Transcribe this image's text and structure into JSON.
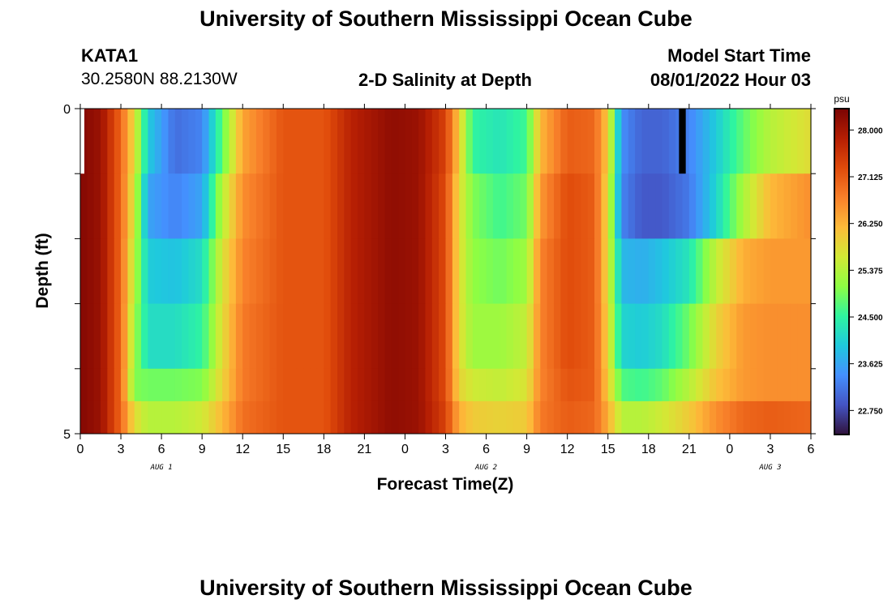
{
  "header": {
    "title": "University of Southern Mississippi Ocean Cube",
    "station_id": "KATA1",
    "coordinates": "30.2580N  88.2130W",
    "plot_title": "2-D Salinity at Depth",
    "model_start_label": "Model Start Time",
    "model_start_value": "08/01/2022 Hour 03"
  },
  "footer": {
    "title": "University of Southern Mississippi Ocean Cube"
  },
  "chart_data": {
    "type": "heatmap",
    "title": "2-D Salinity at Depth",
    "xlabel": "Forecast Time(Z)",
    "ylabel": "Depth (ft)",
    "x_tick_labels": [
      "0",
      "3",
      "6",
      "9",
      "12",
      "15",
      "18",
      "21",
      "0",
      "3",
      "6",
      "9",
      "12",
      "15",
      "18",
      "21",
      "0",
      "3",
      "6"
    ],
    "date_labels": [
      {
        "text": "AUG 1",
        "at_hour": 6
      },
      {
        "text": "AUG 2",
        "at_hour": 30
      },
      {
        "text": "AUG 3",
        "at_hour": 51
      }
    ],
    "x_range_hours": [
      0,
      54
    ],
    "y_range_ft": [
      0,
      5
    ],
    "y_tick_labels": [
      "0",
      "5"
    ],
    "depth_layers_ft": [
      0.5,
      1.5,
      2.5,
      3.5,
      4.5
    ],
    "colorbar": {
      "units": "psu",
      "min": 22.3,
      "max": 28.4,
      "tick_labels": [
        "28.000",
        "27.125",
        "26.250",
        "25.375",
        "24.500",
        "23.625",
        "22.750"
      ],
      "colors": [
        "#30123b",
        "#4454c4",
        "#4490fe",
        "#1fc9dd",
        "#2ff59f",
        "#8efe43",
        "#d2e935",
        "#fdbb39",
        "#f8802a",
        "#e04b0b",
        "#b51e03",
        "#7a0403"
      ]
    },
    "salinity_keypoints": {
      "hours": [
        0,
        1.5,
        3,
        4,
        5,
        7,
        9,
        10.5,
        12,
        15,
        18,
        20,
        23,
        25,
        27,
        28,
        29,
        31,
        33,
        34,
        36,
        38,
        39,
        40,
        41.5,
        43,
        45,
        47,
        49,
        51,
        54
      ],
      "layers": [
        {
          "depth_ft": 0.5,
          "psu": [
            28.3,
            28.1,
            27.0,
            25.8,
            24.0,
            23.1,
            23.3,
            24.8,
            26.4,
            27.2,
            27.2,
            27.8,
            28.2,
            28.1,
            27.4,
            26.0,
            24.5,
            24.3,
            24.6,
            26.2,
            27.1,
            27.0,
            26.0,
            23.4,
            23.0,
            23.0,
            23.3,
            24.0,
            24.8,
            25.4,
            25.8
          ]
        },
        {
          "depth_ft": 1.5,
          "psu": [
            28.3,
            28.1,
            27.0,
            25.6,
            23.6,
            23.3,
            23.6,
            25.4,
            26.6,
            27.2,
            27.2,
            27.8,
            28.2,
            28.1,
            27.3,
            25.8,
            25.0,
            24.6,
            24.9,
            26.5,
            27.3,
            27.1,
            25.8,
            23.3,
            22.9,
            22.9,
            23.2,
            24.1,
            25.3,
            26.2,
            26.6
          ]
        },
        {
          "depth_ft": 2.5,
          "psu": [
            28.3,
            28.1,
            27.0,
            25.4,
            24.0,
            23.9,
            24.2,
            25.7,
            26.7,
            27.2,
            27.2,
            27.8,
            28.2,
            28.1,
            27.3,
            25.8,
            25.1,
            24.9,
            25.2,
            26.7,
            27.3,
            27.1,
            25.8,
            23.8,
            23.7,
            23.9,
            24.3,
            25.5,
            26.3,
            26.5,
            26.5
          ]
        },
        {
          "depth_ft": 3.5,
          "psu": [
            28.3,
            28.1,
            27.0,
            25.2,
            24.2,
            24.2,
            24.5,
            25.8,
            26.8,
            27.2,
            27.2,
            27.8,
            28.2,
            28.1,
            27.3,
            25.8,
            25.2,
            25.2,
            25.5,
            26.7,
            27.3,
            27.1,
            25.9,
            24.1,
            24.0,
            24.2,
            24.9,
            25.9,
            26.5,
            26.6,
            26.6
          ]
        },
        {
          "depth_ft": 4.5,
          "psu": [
            28.3,
            28.1,
            27.0,
            25.0,
            24.9,
            24.9,
            25.0,
            25.9,
            26.8,
            27.2,
            27.2,
            27.8,
            28.2,
            28.1,
            27.3,
            25.9,
            25.6,
            25.5,
            25.7,
            26.7,
            27.2,
            27.1,
            26.0,
            24.7,
            24.6,
            24.8,
            25.4,
            26.1,
            26.5,
            26.6,
            26.6
          ]
        },
        {
          "depth_ft": 5.0,
          "psu": [
            28.3,
            28.1,
            27.0,
            25.8,
            25.4,
            25.4,
            25.6,
            26.2,
            26.9,
            27.2,
            27.2,
            27.8,
            28.2,
            28.1,
            27.4,
            26.3,
            26.0,
            25.9,
            26.0,
            26.8,
            27.1,
            27.0,
            26.3,
            25.4,
            25.4,
            25.6,
            26.0,
            26.6,
            27.0,
            27.1,
            27.0
          ]
        }
      ]
    }
  }
}
